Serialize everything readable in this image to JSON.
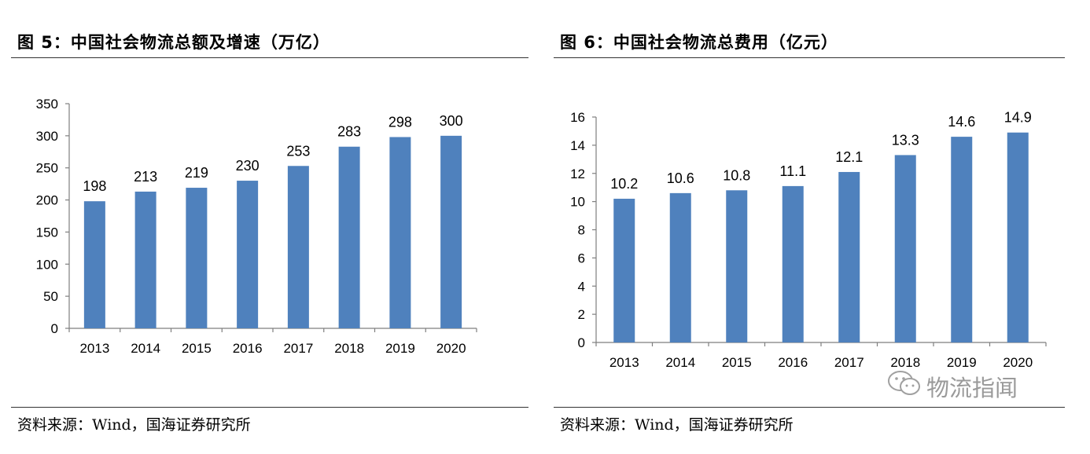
{
  "titles": {
    "left": "图 5：中国社会物流总额及增速（万亿）",
    "right": "图 6：中国社会物流总费用（亿元）"
  },
  "sources": {
    "left": "资料来源：Wind，国海证券研究所",
    "right": "资料来源：Wind，国海证券研究所"
  },
  "watermark": {
    "text": "物流指闻",
    "icon": "wechat-icon"
  },
  "colors": {
    "bar": "#4f81bd",
    "axis": "#7f7f7f"
  },
  "chart_data": [
    {
      "type": "bar",
      "title": "中国社会物流总额及增速（万亿）",
      "categories": [
        "2013",
        "2014",
        "2015",
        "2016",
        "2017",
        "2018",
        "2019",
        "2020"
      ],
      "values": [
        198,
        213,
        219,
        230,
        253,
        283,
        298,
        300
      ],
      "ylim": [
        0,
        350
      ],
      "yticks": [
        0,
        50,
        100,
        150,
        200,
        250,
        300,
        350
      ],
      "data_labels": [
        "198",
        "213",
        "219",
        "230",
        "253",
        "283",
        "298",
        "300"
      ],
      "grid": false,
      "legend": "none"
    },
    {
      "type": "bar",
      "title": "中国社会物流总费用（亿元）",
      "categories": [
        "2013",
        "2014",
        "2015",
        "2016",
        "2017",
        "2018",
        "2019",
        "2020"
      ],
      "values": [
        10.2,
        10.6,
        10.8,
        11.1,
        12.1,
        13.3,
        14.6,
        14.9
      ],
      "ylim": [
        0,
        16
      ],
      "yticks": [
        0,
        2,
        4,
        6,
        8,
        10,
        12,
        14,
        16
      ],
      "data_labels": [
        "10.2",
        "10.6",
        "10.8",
        "11.1",
        "12.1",
        "13.3",
        "14.6",
        "14.9"
      ],
      "grid": false,
      "legend": "none"
    }
  ]
}
